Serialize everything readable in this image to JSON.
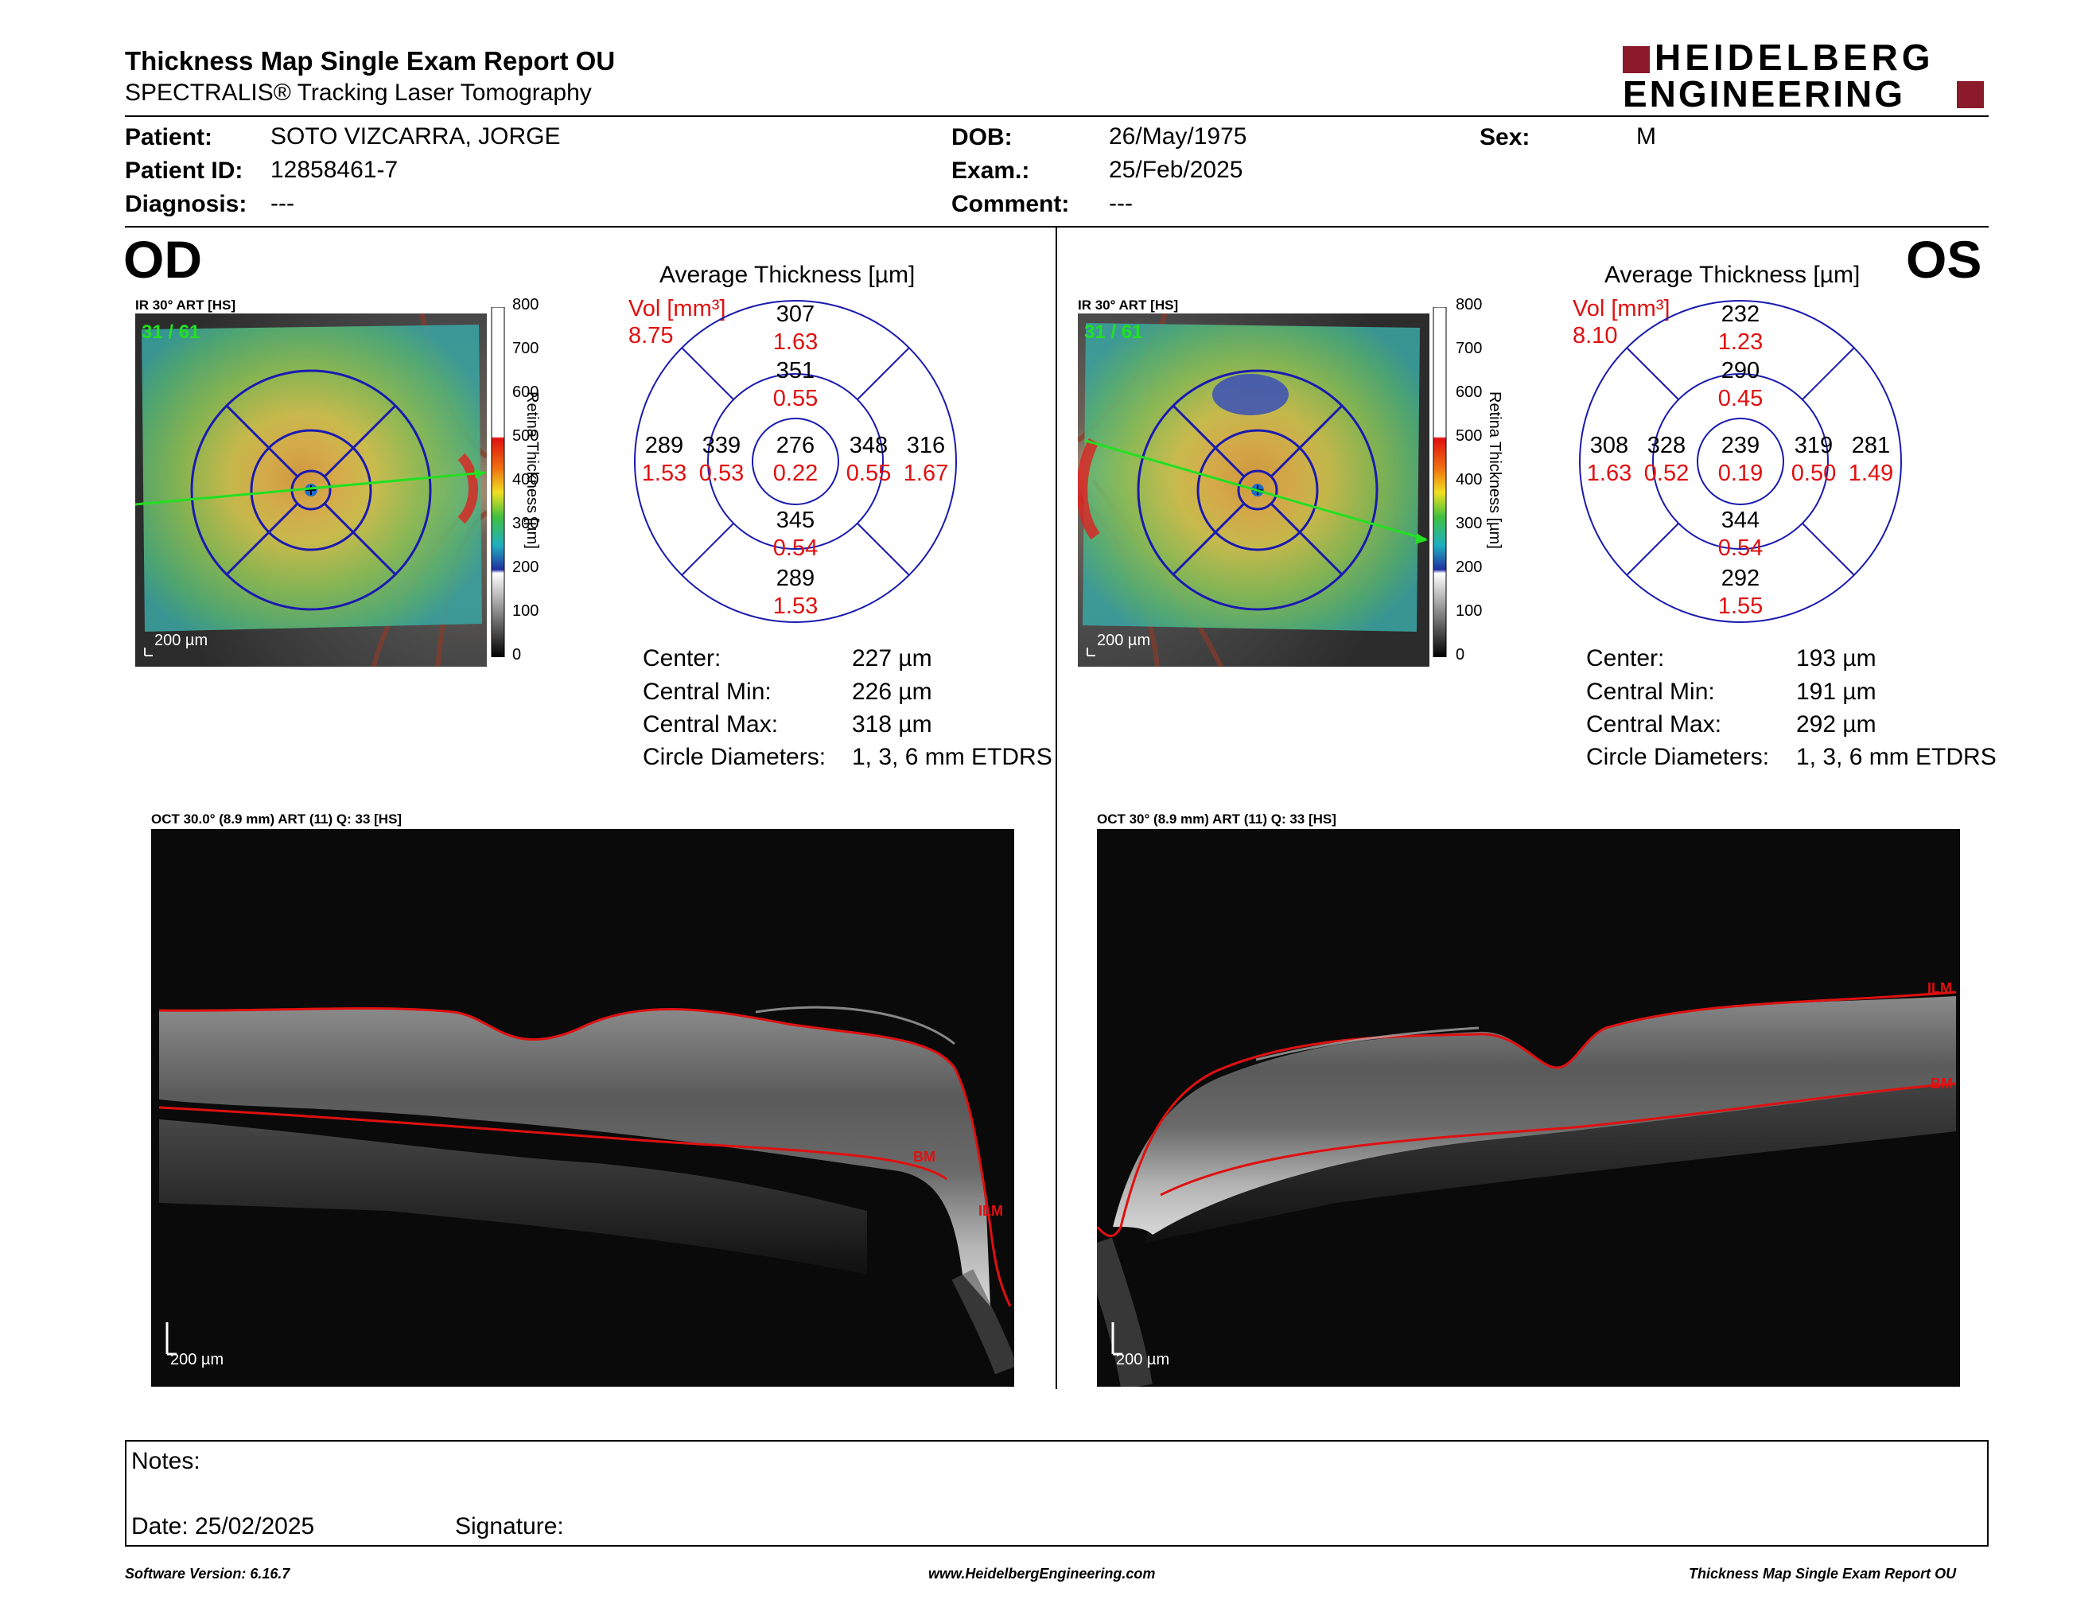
{
  "report": {
    "title": "Thickness Map Single Exam Report OU",
    "subtitle": "SPECTRALIS® Tracking Laser Tomography"
  },
  "brand": {
    "line1": "HEIDELBERG",
    "line2": "ENGINEERING",
    "accent_color": "#8b1a2b"
  },
  "patient": {
    "name_label": "Patient:",
    "name": "SOTO VIZCARRA, JORGE",
    "id_label": "Patient ID:",
    "id": "12858461-7",
    "diagnosis_label": "Diagnosis:",
    "diagnosis": "---",
    "dob_label": "DOB:",
    "dob": "26/May/1975",
    "exam_label": "Exam.:",
    "exam": "25/Feb/2025",
    "comment_label": "Comment:",
    "comment": "---",
    "sex_label": "Sex:",
    "sex": "M"
  },
  "colorbar": {
    "title": "Retina Thickness [µm]",
    "ticks": [
      "800",
      "700",
      "600",
      "500",
      "400",
      "300",
      "200",
      "100",
      "0"
    ]
  },
  "od": {
    "eye": "OD",
    "ir_label": "IR 30° ART [HS]",
    "frames": "31 / 61",
    "scale": "200 µm",
    "avg_title": "Average Thickness [µm]",
    "vol_label": "Vol [mm³]",
    "vol": "8.75",
    "sectors": {
      "outer_superior": {
        "t": "307",
        "v": "1.63"
      },
      "inner_superior": {
        "t": "351",
        "v": "0.55"
      },
      "outer_temporal": {
        "t": "289",
        "v": "1.53"
      },
      "inner_temporal": {
        "t": "339",
        "v": "0.53"
      },
      "center": {
        "t": "276",
        "v": "0.22"
      },
      "inner_nasal": {
        "t": "348",
        "v": "0.55"
      },
      "outer_nasal": {
        "t": "316",
        "v": "1.67"
      },
      "inner_inferior": {
        "t": "345",
        "v": "0.54"
      },
      "outer_inferior": {
        "t": "289",
        "v": "1.53"
      }
    },
    "stats": {
      "center_label": "Center:",
      "center": "227 µm",
      "min_label": "Central Min:",
      "min": "226 µm",
      "max_label": "Central Max:",
      "max": "318 µm",
      "diam_label": "Circle Diameters:",
      "diam": "1, 3, 6 mm ETDRS"
    },
    "oct_label": "OCT 30.0° (8.9 mm) ART (11) Q: 33 [HS]",
    "oct_scale": "200 µm",
    "bm": "BM",
    "ilm": "ILM"
  },
  "os": {
    "eye": "OS",
    "ir_label": "IR 30° ART [HS]",
    "frames": "31 / 61",
    "scale": "200 µm",
    "avg_title": "Average Thickness [µm]",
    "vol_label": "Vol [mm³]",
    "vol": "8.10",
    "sectors": {
      "outer_superior": {
        "t": "232",
        "v": "1.23"
      },
      "inner_superior": {
        "t": "290",
        "v": "0.45"
      },
      "outer_temporal": {
        "t": "308",
        "v": "1.63"
      },
      "inner_temporal": {
        "t": "328",
        "v": "0.52"
      },
      "center": {
        "t": "239",
        "v": "0.19"
      },
      "inner_nasal": {
        "t": "319",
        "v": "0.50"
      },
      "outer_nasal": {
        "t": "281",
        "v": "1.49"
      },
      "inner_inferior": {
        "t": "344",
        "v": "0.54"
      },
      "outer_inferior": {
        "t": "292",
        "v": "1.55"
      }
    },
    "stats": {
      "center_label": "Center:",
      "center": "193 µm",
      "min_label": "Central Min:",
      "min": "191 µm",
      "max_label": "Central Max:",
      "max": "292 µm",
      "diam_label": "Circle Diameters:",
      "diam": "1, 3, 6 mm ETDRS"
    },
    "oct_label": "OCT 30° (8.9 mm) ART (11) Q: 33 [HS]",
    "oct_scale": "200 µm",
    "bm": "BM",
    "ilm": "ILM"
  },
  "notes": {
    "notes_label": "Notes:",
    "date_label": "Date: 25/02/2025",
    "signature_label": "Signature:"
  },
  "footer": {
    "software": "Software Version: 6.16.7",
    "url": "www.HeidelbergEngineering.com",
    "report_name": "Thickness Map Single Exam Report OU"
  }
}
